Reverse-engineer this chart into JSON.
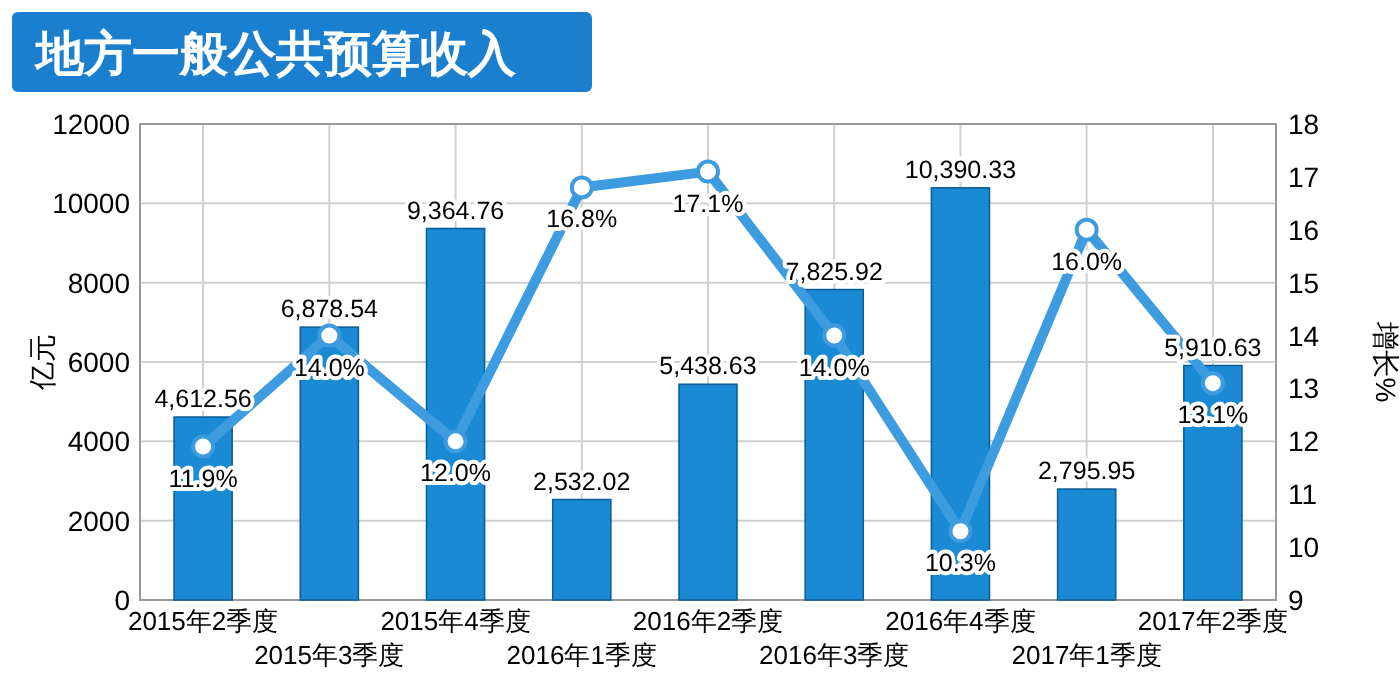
{
  "chart_data": {
    "type": "bar",
    "title": "地方一般公共预算收入",
    "ylabel": "亿元",
    "y2label": "增长%",
    "categories": [
      "2015年2季度",
      "2015年3季度",
      "2015年4季度",
      "2016年1季度",
      "2016年2季度",
      "2016年3季度",
      "2016年4季度",
      "2017年1季度",
      "2017年2季度"
    ],
    "series": [
      {
        "color": "#1a8ad4",
        "values": [
          4612.56,
          6878.54,
          9364.76,
          2532.02,
          5438.63,
          7825.92,
          10390.33,
          2795.95,
          5910.63
        ],
        "value_labels": [
          "4,612.56",
          "6,878.54",
          "9,364.76",
          "2,532.02",
          "5,438.63",
          "7,825.92",
          "10,390.33",
          "2,795.95",
          "5,910.63"
        ]
      },
      {
        "type": "line",
        "axis": "y2",
        "color": "#3d9be0",
        "marker": "circle",
        "values": [
          11.9,
          14.0,
          12.0,
          16.8,
          17.1,
          14.0,
          10.3,
          16.0,
          13.1
        ],
        "value_labels": [
          "11.9%",
          "14.0%",
          "12.0%",
          "16.8%",
          "17.1%",
          "14.0%",
          "10.3%",
          "16.0%",
          "13.1%"
        ]
      }
    ],
    "ylim": [
      0,
      12000
    ],
    "yticks": [
      0,
      2000,
      4000,
      6000,
      8000,
      10000,
      12000
    ],
    "y2lim": [
      9,
      18
    ],
    "y2ticks": [
      9,
      10,
      11,
      12,
      13,
      14,
      15,
      16,
      17,
      18
    ],
    "grid": true
  }
}
